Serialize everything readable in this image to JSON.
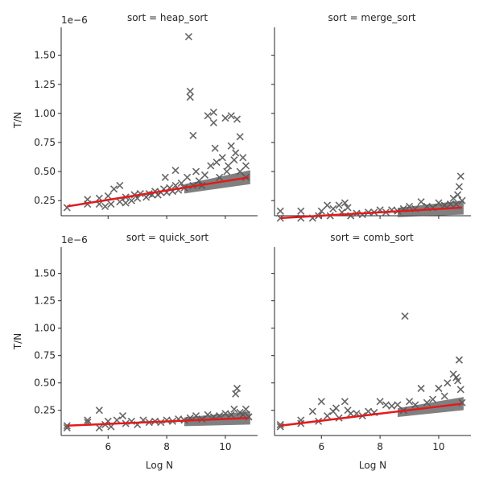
{
  "chart_data": [
    {
      "type": "scatter",
      "title": "sort = heap_sort",
      "xlabel": "",
      "ylabel": "T/N",
      "y_offset_text": "1e−6",
      "xlim": [
        4.4,
        11.1
      ],
      "ylim": [
        0.12,
        1.74
      ],
      "x_ticks": [
        6,
        8,
        10
      ],
      "y_ticks": [
        0.25,
        0.5,
        0.75,
        1.0,
        1.25,
        1.5
      ],
      "y_tick_labels": [
        "0.25",
        "0.50",
        "0.75",
        "1.00",
        "1.25",
        "1.50"
      ],
      "series": [
        {
          "points": [
            [
              4.6,
              0.19
            ],
            [
              5.3,
              0.26
            ],
            [
              5.3,
              0.22
            ],
            [
              5.7,
              0.22
            ],
            [
              5.7,
              0.27
            ],
            [
              5.9,
              0.2
            ],
            [
              6.0,
              0.29
            ],
            [
              6.1,
              0.22
            ],
            [
              6.2,
              0.35
            ],
            [
              6.4,
              0.38
            ],
            [
              6.4,
              0.24
            ],
            [
              6.6,
              0.28
            ],
            [
              6.6,
              0.23
            ],
            [
              6.8,
              0.25
            ],
            [
              6.9,
              0.3
            ],
            [
              7.0,
              0.27
            ],
            [
              7.1,
              0.31
            ],
            [
              7.3,
              0.28
            ],
            [
              7.4,
              0.31
            ],
            [
              7.5,
              0.3
            ],
            [
              7.6,
              0.33
            ],
            [
              7.7,
              0.3
            ],
            [
              7.8,
              0.32
            ],
            [
              7.9,
              0.35
            ],
            [
              7.95,
              0.45
            ],
            [
              8.0,
              0.32
            ],
            [
              8.1,
              0.36
            ],
            [
              8.2,
              0.33
            ],
            [
              8.3,
              0.38
            ],
            [
              8.3,
              0.51
            ],
            [
              8.4,
              0.34
            ],
            [
              8.5,
              0.4
            ],
            [
              8.6,
              0.36
            ],
            [
              8.7,
              0.45
            ],
            [
              8.75,
              1.66
            ],
            [
              8.8,
              1.19
            ],
            [
              8.8,
              1.14
            ],
            [
              8.9,
              0.81
            ],
            [
              8.9,
              0.38
            ],
            [
              9.0,
              0.5
            ],
            [
              9.1,
              0.42
            ],
            [
              9.2,
              0.38
            ],
            [
              9.3,
              0.47
            ],
            [
              9.4,
              0.98
            ],
            [
              9.5,
              0.55
            ],
            [
              9.6,
              1.01
            ],
            [
              9.6,
              0.92
            ],
            [
              9.65,
              0.7
            ],
            [
              9.7,
              0.58
            ],
            [
              9.8,
              0.45
            ],
            [
              9.9,
              0.62
            ],
            [
              10.0,
              0.96
            ],
            [
              10.05,
              0.5
            ],
            [
              10.1,
              0.55
            ],
            [
              10.2,
              0.72
            ],
            [
              10.2,
              0.98
            ],
            [
              10.3,
              0.6
            ],
            [
              10.35,
              0.66
            ],
            [
              10.4,
              0.95
            ],
            [
              10.5,
              0.8
            ],
            [
              10.5,
              0.5
            ],
            [
              10.6,
              0.62
            ],
            [
              10.7,
              0.55
            ],
            [
              10.7,
              0.45
            ]
          ]
        }
      ],
      "regression": {
        "x": [
          4.6,
          10.8
        ],
        "y": [
          0.2,
          0.45
        ]
      }
    },
    {
      "type": "scatter",
      "title": "sort = merge_sort",
      "xlabel": "",
      "ylabel": "",
      "xlim": [
        4.4,
        11.1
      ],
      "ylim": [
        0.12,
        1.74
      ],
      "x_ticks": [
        6,
        8,
        10
      ],
      "y_ticks": [
        0.25,
        0.5,
        0.75,
        1.0,
        1.25,
        1.5
      ],
      "series": [
        {
          "points": [
            [
              4.6,
              0.16
            ],
            [
              4.6,
              0.1
            ],
            [
              5.3,
              0.16
            ],
            [
              5.3,
              0.1
            ],
            [
              5.7,
              0.1
            ],
            [
              5.9,
              0.12
            ],
            [
              6.0,
              0.16
            ],
            [
              6.2,
              0.21
            ],
            [
              6.3,
              0.12
            ],
            [
              6.4,
              0.18
            ],
            [
              6.6,
              0.21
            ],
            [
              6.7,
              0.15
            ],
            [
              6.8,
              0.23
            ],
            [
              6.9,
              0.19
            ],
            [
              7.0,
              0.12
            ],
            [
              7.2,
              0.14
            ],
            [
              7.4,
              0.13
            ],
            [
              7.6,
              0.15
            ],
            [
              7.8,
              0.15
            ],
            [
              8.0,
              0.17
            ],
            [
              8.2,
              0.15
            ],
            [
              8.4,
              0.17
            ],
            [
              8.6,
              0.16
            ],
            [
              8.8,
              0.18
            ],
            [
              9.0,
              0.2
            ],
            [
              9.2,
              0.18
            ],
            [
              9.4,
              0.24
            ],
            [
              9.6,
              0.2
            ],
            [
              9.8,
              0.19
            ],
            [
              10.0,
              0.23
            ],
            [
              10.2,
              0.21
            ],
            [
              10.4,
              0.22
            ],
            [
              10.5,
              0.27
            ],
            [
              10.6,
              0.22
            ],
            [
              10.65,
              0.3
            ],
            [
              10.7,
              0.37
            ],
            [
              10.75,
              0.46
            ],
            [
              10.8,
              0.25
            ]
          ]
        }
      ],
      "regression": {
        "x": [
          4.6,
          10.8
        ],
        "y": [
          0.1,
          0.19
        ]
      }
    },
    {
      "type": "scatter",
      "title": "sort = quick_sort",
      "xlabel": "Log N",
      "ylabel": "T/N",
      "y_offset_text": "1e−6",
      "xlim": [
        4.4,
        11.1
      ],
      "ylim": [
        0.02,
        1.74
      ],
      "x_ticks": [
        6,
        8,
        10
      ],
      "x_tick_labels": [
        "6",
        "8",
        "10"
      ],
      "y_ticks": [
        0.25,
        0.5,
        0.75,
        1.0,
        1.25,
        1.5
      ],
      "y_tick_labels": [
        "0.25",
        "0.50",
        "0.75",
        "1.00",
        "1.25",
        "1.50"
      ],
      "series": [
        {
          "points": [
            [
              4.6,
              0.11
            ],
            [
              4.6,
              0.09
            ],
            [
              5.3,
              0.16
            ],
            [
              5.3,
              0.14
            ],
            [
              5.7,
              0.25
            ],
            [
              5.7,
              0.09
            ],
            [
              5.9,
              0.12
            ],
            [
              6.0,
              0.15
            ],
            [
              6.1,
              0.1
            ],
            [
              6.3,
              0.16
            ],
            [
              6.5,
              0.2
            ],
            [
              6.6,
              0.13
            ],
            [
              6.8,
              0.15
            ],
            [
              7.0,
              0.12
            ],
            [
              7.2,
              0.16
            ],
            [
              7.4,
              0.14
            ],
            [
              7.6,
              0.15
            ],
            [
              7.8,
              0.14
            ],
            [
              8.0,
              0.16
            ],
            [
              8.2,
              0.15
            ],
            [
              8.4,
              0.17
            ],
            [
              8.6,
              0.16
            ],
            [
              8.8,
              0.18
            ],
            [
              9.0,
              0.2
            ],
            [
              9.2,
              0.17
            ],
            [
              9.4,
              0.21
            ],
            [
              9.6,
              0.19
            ],
            [
              9.8,
              0.2
            ],
            [
              10.0,
              0.22
            ],
            [
              10.2,
              0.21
            ],
            [
              10.3,
              0.26
            ],
            [
              10.35,
              0.4
            ],
            [
              10.4,
              0.45
            ],
            [
              10.5,
              0.23
            ],
            [
              10.6,
              0.21
            ],
            [
              10.7,
              0.26
            ],
            [
              10.8,
              0.19
            ]
          ]
        }
      ],
      "regression": {
        "x": [
          4.6,
          10.8
        ],
        "y": [
          0.11,
          0.18
        ]
      }
    },
    {
      "type": "scatter",
      "title": "sort = comb_sort",
      "xlabel": "Log N",
      "ylabel": "",
      "xlim": [
        4.4,
        11.1
      ],
      "ylim": [
        0.02,
        1.74
      ],
      "x_ticks": [
        6,
        8,
        10
      ],
      "x_tick_labels": [
        "6",
        "8",
        "10"
      ],
      "y_ticks": [
        0.25,
        0.5,
        0.75,
        1.0,
        1.25,
        1.5
      ],
      "series": [
        {
          "points": [
            [
              4.6,
              0.12
            ],
            [
              4.6,
              0.1
            ],
            [
              5.3,
              0.13
            ],
            [
              5.3,
              0.16
            ],
            [
              5.7,
              0.24
            ],
            [
              5.9,
              0.15
            ],
            [
              6.0,
              0.33
            ],
            [
              6.2,
              0.2
            ],
            [
              6.4,
              0.24
            ],
            [
              6.5,
              0.27
            ],
            [
              6.6,
              0.18
            ],
            [
              6.8,
              0.33
            ],
            [
              6.9,
              0.25
            ],
            [
              7.0,
              0.22
            ],
            [
              7.2,
              0.22
            ],
            [
              7.4,
              0.2
            ],
            [
              7.6,
              0.24
            ],
            [
              7.8,
              0.23
            ],
            [
              8.0,
              0.33
            ],
            [
              8.2,
              0.3
            ],
            [
              8.4,
              0.29
            ],
            [
              8.6,
              0.3
            ],
            [
              8.8,
              0.25
            ],
            [
              8.85,
              1.11
            ],
            [
              9.0,
              0.33
            ],
            [
              9.2,
              0.3
            ],
            [
              9.4,
              0.45
            ],
            [
              9.6,
              0.32
            ],
            [
              9.8,
              0.35
            ],
            [
              10.0,
              0.45
            ],
            [
              10.2,
              0.38
            ],
            [
              10.3,
              0.5
            ],
            [
              10.5,
              0.58
            ],
            [
              10.6,
              0.55
            ],
            [
              10.65,
              0.52
            ],
            [
              10.7,
              0.71
            ],
            [
              10.75,
              0.44
            ],
            [
              10.8,
              0.32
            ]
          ]
        }
      ],
      "regression": {
        "x": [
          4.6,
          10.8
        ],
        "y": [
          0.11,
          0.31
        ]
      }
    }
  ]
}
